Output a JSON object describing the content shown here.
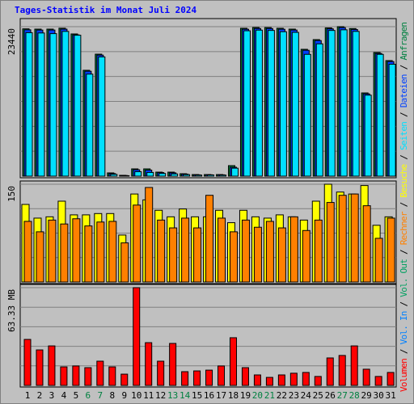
{
  "title": "Tages-Statistik im Monat Juli 2024",
  "legend_separator": " / ",
  "highlight_color": "#008040",
  "highlighted": [
    "6",
    "7",
    "13",
    "14",
    "20",
    "21",
    "27",
    "28"
  ],
  "chart_data": [
    {
      "type": "bar",
      "ylim": [
        0,
        23440
      ],
      "yticks": [
        23440
      ],
      "series": [
        {
          "name": "Anfragen",
          "color": "#008040",
          "values": [
            23100,
            23060,
            23060,
            23200,
            22300,
            16600,
            19130,
            510,
            130,
            1140,
            1140,
            630,
            630,
            380,
            250,
            250,
            250,
            1650,
            23190,
            23310,
            23300,
            23190,
            23060,
            19890,
            21410,
            23250,
            23440,
            23150,
            13050,
            19390,
            18120
          ]
        },
        {
          "name": "Dateien",
          "color": "#0040ff",
          "values": [
            22950,
            22910,
            22910,
            23050,
            22150,
            16450,
            18980,
            400,
            100,
            1000,
            950,
            560,
            520,
            320,
            210,
            220,
            210,
            1400,
            23040,
            23160,
            23150,
            23040,
            22910,
            19740,
            21260,
            23100,
            23290,
            23000,
            12900,
            19240,
            17970
          ]
        },
        {
          "name": "Seiten",
          "color": "#00e0ff",
          "values": [
            22500,
            22450,
            22350,
            22700,
            22100,
            16000,
            18700,
            280,
            70,
            700,
            580,
            420,
            350,
            240,
            170,
            190,
            170,
            1250,
            22800,
            22900,
            22850,
            22650,
            22550,
            19100,
            20750,
            22850,
            22950,
            22700,
            12700,
            19100,
            17550
          ]
        }
      ]
    },
    {
      "type": "bar",
      "ylim": [
        0,
        150
      ],
      "yticks": [
        150
      ],
      "series": [
        {
          "name": "Besuche",
          "color": "#ffff00",
          "values": [
            119,
            98,
            100,
            124,
            103,
            103,
            105,
            105,
            72,
            135,
            126,
            110,
            100,
            112,
            100,
            100,
            110,
            91,
            110,
            100,
            98,
            103,
            100,
            95,
            124,
            150,
            138,
            135,
            148,
            87,
            100
          ]
        },
        {
          "name": "Rechner",
          "color": "#ff8000",
          "values": [
            93,
            77,
            95,
            89,
            97,
            86,
            92,
            93,
            60,
            118,
            145,
            95,
            83,
            98,
            83,
            133,
            98,
            77,
            95,
            84,
            93,
            83,
            100,
            79,
            95,
            122,
            133,
            135,
            117,
            67,
            98
          ]
        }
      ]
    },
    {
      "type": "bar",
      "ylim": [
        0,
        63.33
      ],
      "yticks": [
        {
          "value": 63.33,
          "label": "63.33 MB"
        }
      ],
      "categories": [
        "1",
        "2",
        "3",
        "4",
        "5",
        "6",
        "7",
        "8",
        "9",
        "10",
        "11",
        "12",
        "13",
        "14",
        "15",
        "16",
        "17",
        "18",
        "19",
        "20",
        "21",
        "22",
        "23",
        "24",
        "25",
        "26",
        "27",
        "28",
        "29",
        "30",
        "31"
      ],
      "series": [
        {
          "name": "Volumen",
          "color": "#ff0000",
          "values": [
            29.8,
            23.0,
            25.6,
            12.0,
            12.6,
            11.5,
            15.7,
            12.0,
            7.3,
            63.33,
            27.7,
            15.7,
            27.2,
            8.9,
            9.4,
            9.9,
            12.6,
            30.9,
            11.5,
            6.8,
            5.2,
            6.8,
            7.9,
            8.4,
            5.8,
            17.8,
            19.4,
            25.6,
            10.5,
            5.8,
            8.4
          ]
        }
      ],
      "extra_legend": [
        {
          "name": "Vol. In",
          "color": "#0080ff"
        },
        {
          "name": "Vol. Out",
          "color": "#00a060"
        }
      ]
    }
  ]
}
